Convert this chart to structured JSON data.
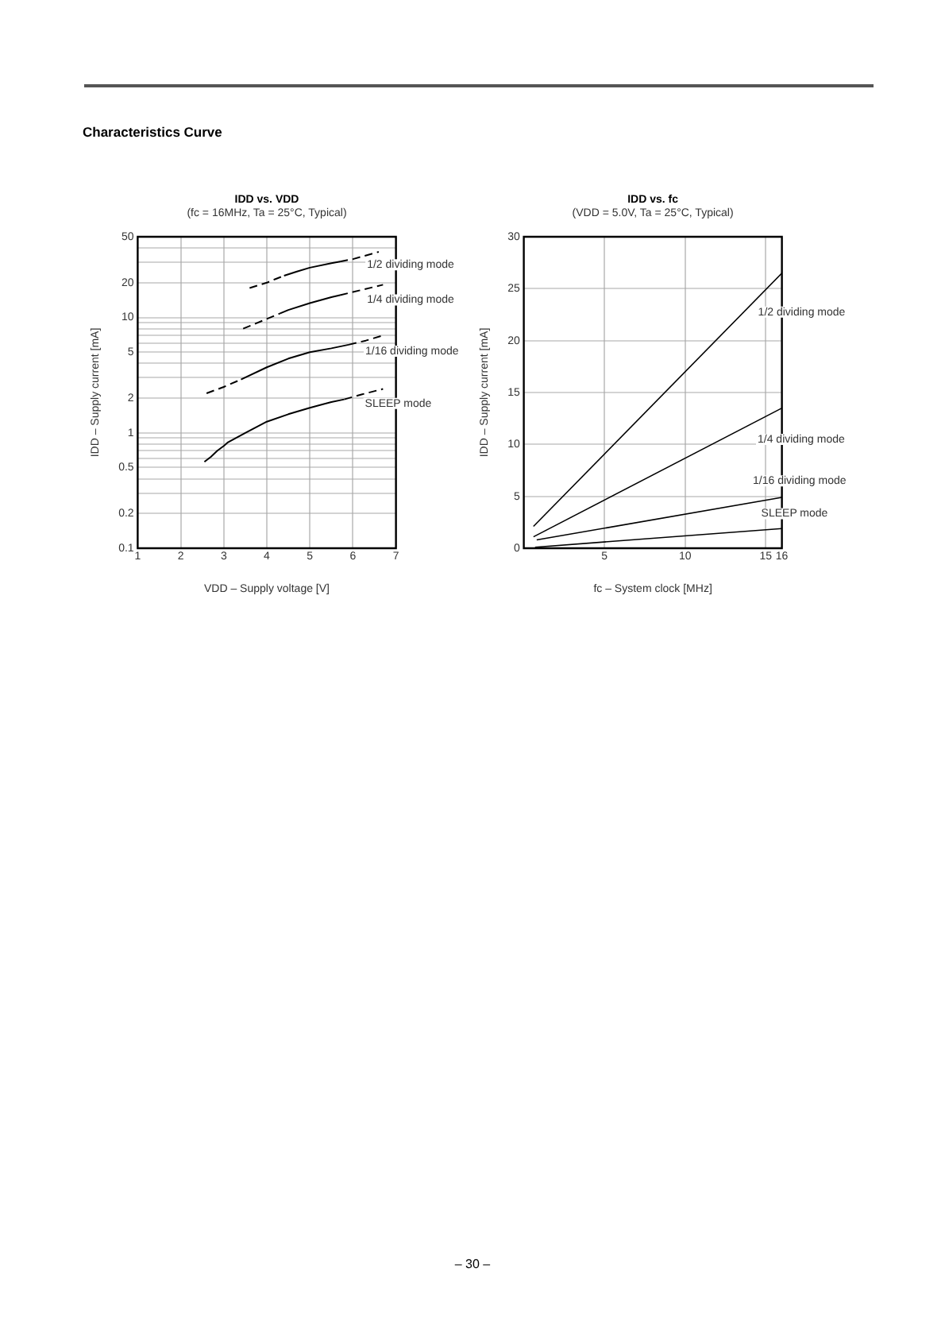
{
  "chart_data": [
    {
      "type": "line",
      "title": "IDD vs. VDD",
      "subtitle": "(fc = 16MHz, Ta = 25°C, Typical)",
      "xlabel": "VDD – Supply voltage [V]",
      "ylabel": "IDD – Supply current [mA]",
      "xlim": [
        1,
        7
      ],
      "xticks": [
        1,
        2,
        3,
        4,
        5,
        6,
        7
      ],
      "ylim": [
        0.1,
        50
      ],
      "yticks": [
        0.1,
        0.2,
        {
          "value": 0.3,
          "label": null
        },
        {
          "value": 0.4,
          "label": null
        },
        0.5,
        {
          "value": 0.6,
          "label": null
        },
        {
          "value": 0.7,
          "label": null
        },
        {
          "value": 0.8,
          "label": null
        },
        {
          "value": 0.9,
          "label": null
        },
        1,
        2,
        {
          "value": 3,
          "label": null
        },
        {
          "value": 4,
          "label": null
        },
        5,
        {
          "value": 6,
          "label": null
        },
        {
          "value": 7,
          "label": null
        },
        {
          "value": 8,
          "label": null
        },
        {
          "value": 9,
          "label": null
        },
        10,
        20,
        {
          "value": 30,
          "label": null
        },
        {
          "value": 40,
          "label": null
        },
        50
      ],
      "log": "y",
      "grid": true,
      "annotations": [
        "Characteristics Curve",
        "– 30 –"
      ],
      "series": [
        {
          "name": "1/2 dividing mode",
          "color": "#000000",
          "x": [
            4.4,
            4.7,
            5.0,
            5.5,
            5.7
          ],
          "values": [
            23,
            25,
            27,
            29.5,
            30.5
          ]
        },
        {
          "name": "1/4 dividing mode",
          "color": "#000000",
          "x": [
            4.3,
            4.5,
            5.0,
            5.5,
            5.7
          ],
          "values": [
            10.8,
            11.6,
            13.3,
            15.0,
            15.6
          ]
        },
        {
          "name": "1/16 dividing mode",
          "color": "#000000",
          "x": [
            3.4,
            4.0,
            4.5,
            5.0,
            5.5,
            5.9
          ],
          "values": [
            2.9,
            3.7,
            4.4,
            5.0,
            5.4,
            5.8
          ]
        },
        {
          "name": "SLEEP mode",
          "color": "#000000",
          "x": [
            2.55,
            2.7,
            2.85,
            3.0,
            3.1,
            3.5,
            4.0,
            4.5,
            5.0,
            5.5,
            5.8
          ],
          "values": [
            0.56,
            0.62,
            0.7,
            0.77,
            0.83,
            1.0,
            1.25,
            1.45,
            1.65,
            1.85,
            1.95
          ]
        },
        {
          "color": "#000000",
          "line_style": "dashed",
          "x": [
            3.6,
            3.8,
            4.0,
            4.2,
            4.4,
            5.0,
            5.7,
            6.0,
            6.6
          ],
          "values": [
            18,
            19,
            20,
            21.5,
            23,
            null,
            30.5,
            32,
            37
          ]
        },
        {
          "color": "#000000",
          "line_style": "dashed",
          "x": [
            3.45,
            4.0,
            4.3,
            5.0,
            5.7,
            6.0,
            6.7
          ],
          "values": [
            8.0,
            9.7,
            10.8,
            null,
            15.6,
            16.6,
            19.2
          ]
        },
        {
          "color": "#000000",
          "line_style": "dashed",
          "x": [
            2.6,
            3.0,
            3.4,
            4.5,
            5.9,
            6.3,
            6.65
          ],
          "values": [
            2.2,
            2.5,
            2.9,
            null,
            5.8,
            6.3,
            6.9
          ]
        },
        {
          "color": "#000000",
          "line_style": "dashed",
          "x": [
            5.8,
            6.2,
            6.7
          ],
          "values": [
            1.95,
            2.15,
            2.4
          ]
        }
      ]
    },
    {
      "type": "line",
      "title": "IDD vs. fc",
      "subtitle": "(VDD = 5.0V, Ta = 25°C, Typical)",
      "xlabel": "fc – System clock [MHz]",
      "ylabel": "IDD – Supply current [mA]",
      "xlim": [
        0,
        16
      ],
      "xticks": [
        5,
        10,
        15,
        16
      ],
      "ylim": [
        0,
        30
      ],
      "yticks": [
        0,
        5,
        10,
        15,
        20,
        25,
        30
      ],
      "grid": true,
      "series": [
        {
          "name": "1/2 dividing mode",
          "color": "#000000",
          "x": [
            0.6,
            16
          ],
          "values": [
            2.1,
            26.5
          ]
        },
        {
          "name": "1/4 dividing mode",
          "color": "#000000",
          "x": [
            0.6,
            16
          ],
          "values": [
            1.1,
            13.5
          ]
        },
        {
          "name": "1/16 dividing mode",
          "color": "#000000",
          "x": [
            0.8,
            16
          ],
          "values": [
            0.8,
            4.9
          ]
        },
        {
          "name": "SLEEP mode",
          "color": "#000000",
          "x": [
            0.7,
            16
          ],
          "values": [
            0.1,
            1.9
          ]
        }
      ]
    }
  ]
}
